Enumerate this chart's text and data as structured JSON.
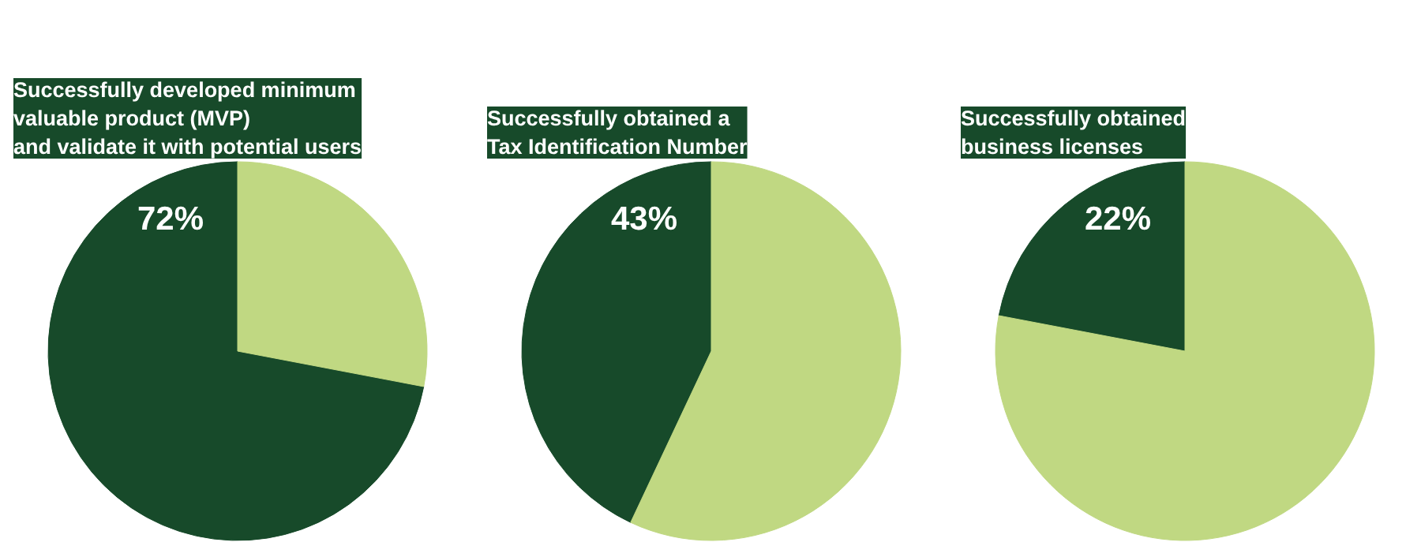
{
  "chart_data": [
    {
      "type": "pie",
      "title": "Successfully developed minimum\nvaluable product (MVP)\nand validate it with potential users",
      "categories": [
        null,
        null
      ],
      "values": [
        72,
        28
      ],
      "colors": [
        "#174a2a",
        "#c0d882"
      ],
      "value_labels": [
        "72%",
        null
      ]
    },
    {
      "type": "pie",
      "title": "Successfully obtained a\nTax Identification Number",
      "categories": [
        null,
        null
      ],
      "values": [
        43,
        57
      ],
      "colors": [
        "#174a2a",
        "#c0d882"
      ],
      "value_labels": [
        "43%",
        null
      ]
    },
    {
      "type": "pie",
      "title": "Successfully obtained\nbusiness licenses",
      "categories": [
        null,
        null
      ],
      "values": [
        22,
        78
      ],
      "colors": [
        "#174a2a",
        "#c0d882"
      ],
      "value_labels": [
        "22%",
        null
      ]
    }
  ]
}
